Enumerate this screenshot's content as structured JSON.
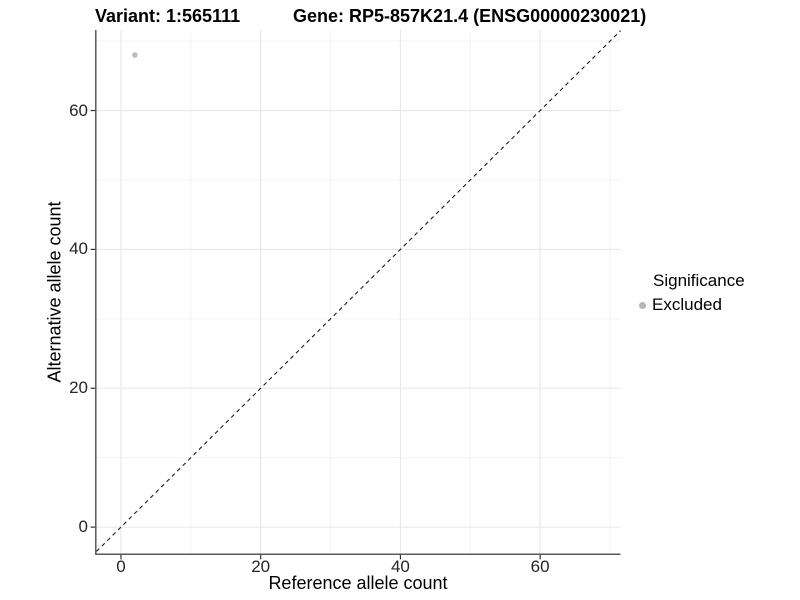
{
  "chart_data": {
    "type": "scatter",
    "titles": {
      "left": "Variant: 1:565111",
      "right": "Gene: RP5-857K21.4 (ENSG00000230021)"
    },
    "xlabel": "Reference allele count",
    "ylabel": "Alternative allele count",
    "xlim": [
      -3.5,
      71.5
    ],
    "ylim": [
      -3.8,
      71.6
    ],
    "x_ticks": [
      0,
      20,
      40,
      60
    ],
    "y_ticks": [
      0,
      20,
      40,
      60
    ],
    "x_minor_ticks": [
      10,
      30,
      50,
      70
    ],
    "y_minor_ticks": [
      10,
      30,
      50,
      70
    ],
    "grid": "major+minor",
    "legend": {
      "title": "Significance",
      "position": "right",
      "items": [
        {
          "label": "Excluded",
          "color": "#b5b5b5"
        }
      ]
    },
    "series": [
      {
        "name": "Excluded",
        "color": "#bdbdbd",
        "points": [
          [
            2,
            68
          ]
        ]
      }
    ],
    "reference_line": {
      "kind": "identity",
      "slope": 1,
      "intercept": 0,
      "style": "dashed"
    }
  },
  "colors": {
    "background": "#ffffff",
    "grid_major": "#e7e7e7",
    "grid_minor": "#f3f3f3",
    "axis_line": "#595959",
    "tick_mark": "#333333",
    "tick_label": "#262626",
    "text": "#000000",
    "ref_line": "#1a1a1a",
    "point": "#bdbdbd"
  }
}
